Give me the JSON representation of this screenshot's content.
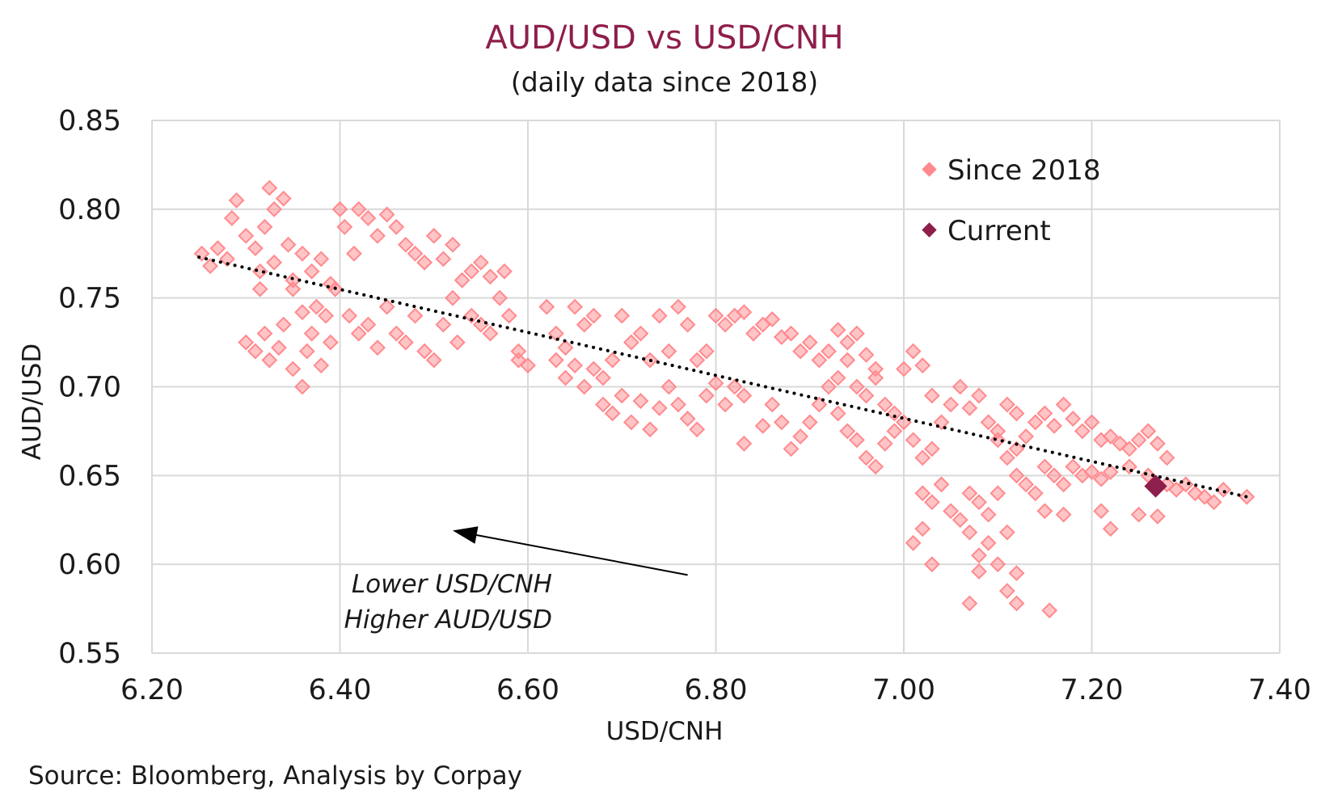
{
  "chart_data": {
    "type": "scatter",
    "title": "AUD/USD vs USD/CNH",
    "subtitle": "(daily data since 2018)",
    "xlabel": "USD/CNH",
    "ylabel": "AUD/USD",
    "xlim": [
      6.2,
      7.4
    ],
    "ylim": [
      0.55,
      0.85
    ],
    "x_ticks": [
      "6.20",
      "6.40",
      "6.60",
      "6.80",
      "7.00",
      "7.20",
      "7.40"
    ],
    "y_ticks": [
      "0.85",
      "0.80",
      "0.75",
      "0.70",
      "0.65",
      "0.60",
      "0.55"
    ],
    "grid": true,
    "legend_position": "top-right",
    "colors": {
      "since_2018": "#ff8a8e",
      "current": "#8e1e4c",
      "title": "#8e1e4c",
      "trendline": "#000000"
    },
    "series": [
      {
        "name": "Since 2018",
        "marker": "diamond",
        "points": [
          [
            6.253,
            0.775
          ],
          [
            6.262,
            0.768
          ],
          [
            6.27,
            0.778
          ],
          [
            6.28,
            0.772
          ],
          [
            6.285,
            0.795
          ],
          [
            6.29,
            0.805
          ],
          [
            6.3,
            0.785
          ],
          [
            6.31,
            0.778
          ],
          [
            6.315,
            0.765
          ],
          [
            6.32,
            0.79
          ],
          [
            6.325,
            0.812
          ],
          [
            6.33,
            0.8
          ],
          [
            6.34,
            0.806
          ],
          [
            6.345,
            0.78
          ],
          [
            6.33,
            0.77
          ],
          [
            6.315,
            0.755
          ],
          [
            6.35,
            0.76
          ],
          [
            6.36,
            0.775
          ],
          [
            6.37,
            0.765
          ],
          [
            6.38,
            0.772
          ],
          [
            6.39,
            0.758
          ],
          [
            6.4,
            0.8
          ],
          [
            6.405,
            0.79
          ],
          [
            6.415,
            0.775
          ],
          [
            6.42,
            0.8
          ],
          [
            6.43,
            0.795
          ],
          [
            6.44,
            0.785
          ],
          [
            6.45,
            0.797
          ],
          [
            6.46,
            0.79
          ],
          [
            6.47,
            0.78
          ],
          [
            6.48,
            0.775
          ],
          [
            6.49,
            0.77
          ],
          [
            6.5,
            0.785
          ],
          [
            6.51,
            0.772
          ],
          [
            6.52,
            0.78
          ],
          [
            6.53,
            0.76
          ],
          [
            6.54,
            0.765
          ],
          [
            6.55,
            0.77
          ],
          [
            6.56,
            0.762
          ],
          [
            6.57,
            0.75
          ],
          [
            6.575,
            0.765
          ],
          [
            6.3,
            0.725
          ],
          [
            6.31,
            0.72
          ],
          [
            6.32,
            0.73
          ],
          [
            6.325,
            0.715
          ],
          [
            6.335,
            0.722
          ],
          [
            6.34,
            0.735
          ],
          [
            6.35,
            0.71
          ],
          [
            6.36,
            0.7
          ],
          [
            6.365,
            0.72
          ],
          [
            6.37,
            0.73
          ],
          [
            6.375,
            0.745
          ],
          [
            6.38,
            0.712
          ],
          [
            6.385,
            0.74
          ],
          [
            6.39,
            0.725
          ],
          [
            6.395,
            0.755
          ],
          [
            6.36,
            0.742
          ],
          [
            6.35,
            0.755
          ],
          [
            6.41,
            0.74
          ],
          [
            6.42,
            0.73
          ],
          [
            6.43,
            0.735
          ],
          [
            6.44,
            0.722
          ],
          [
            6.45,
            0.745
          ],
          [
            6.46,
            0.73
          ],
          [
            6.47,
            0.725
          ],
          [
            6.48,
            0.74
          ],
          [
            6.49,
            0.72
          ],
          [
            6.5,
            0.715
          ],
          [
            6.51,
            0.735
          ],
          [
            6.52,
            0.75
          ],
          [
            6.525,
            0.725
          ],
          [
            6.54,
            0.74
          ],
          [
            6.55,
            0.735
          ],
          [
            6.56,
            0.73
          ],
          [
            6.58,
            0.74
          ],
          [
            6.59,
            0.72
          ],
          [
            6.6,
            0.712
          ],
          [
            6.59,
            0.715
          ],
          [
            6.62,
            0.745
          ],
          [
            6.63,
            0.73
          ],
          [
            6.64,
            0.722
          ],
          [
            6.65,
            0.745
          ],
          [
            6.66,
            0.735
          ],
          [
            6.67,
            0.74
          ],
          [
            6.63,
            0.715
          ],
          [
            6.64,
            0.705
          ],
          [
            6.65,
            0.712
          ],
          [
            6.66,
            0.7
          ],
          [
            6.67,
            0.71
          ],
          [
            6.68,
            0.705
          ],
          [
            6.69,
            0.715
          ],
          [
            6.7,
            0.74
          ],
          [
            6.71,
            0.725
          ],
          [
            6.72,
            0.73
          ],
          [
            6.73,
            0.715
          ],
          [
            6.74,
            0.74
          ],
          [
            6.75,
            0.72
          ],
          [
            6.76,
            0.745
          ],
          [
            6.77,
            0.735
          ],
          [
            6.68,
            0.69
          ],
          [
            6.69,
            0.685
          ],
          [
            6.7,
            0.695
          ],
          [
            6.71,
            0.68
          ],
          [
            6.72,
            0.692
          ],
          [
            6.73,
            0.676
          ],
          [
            6.74,
            0.688
          ],
          [
            6.75,
            0.7
          ],
          [
            6.76,
            0.69
          ],
          [
            6.77,
            0.682
          ],
          [
            6.78,
            0.676
          ],
          [
            6.79,
            0.695
          ],
          [
            6.8,
            0.702
          ],
          [
            6.81,
            0.69
          ],
          [
            6.82,
            0.7
          ],
          [
            6.83,
            0.695
          ],
          [
            6.78,
            0.715
          ],
          [
            6.79,
            0.72
          ],
          [
            6.8,
            0.74
          ],
          [
            6.81,
            0.735
          ],
          [
            6.82,
            0.74
          ],
          [
            6.83,
            0.742
          ],
          [
            6.84,
            0.73
          ],
          [
            6.85,
            0.735
          ],
          [
            6.86,
            0.738
          ],
          [
            6.87,
            0.728
          ],
          [
            6.88,
            0.73
          ],
          [
            6.89,
            0.72
          ],
          [
            6.9,
            0.725
          ],
          [
            6.91,
            0.715
          ],
          [
            6.92,
            0.72
          ],
          [
            6.93,
            0.732
          ],
          [
            6.94,
            0.725
          ],
          [
            6.95,
            0.73
          ],
          [
            6.96,
            0.718
          ],
          [
            6.97,
            0.71
          ],
          [
            6.83,
            0.668
          ],
          [
            6.85,
            0.678
          ],
          [
            6.86,
            0.69
          ],
          [
            6.87,
            0.68
          ],
          [
            6.88,
            0.665
          ],
          [
            6.89,
            0.672
          ],
          [
            6.9,
            0.68
          ],
          [
            6.91,
            0.69
          ],
          [
            6.92,
            0.7
          ],
          [
            6.93,
            0.685
          ],
          [
            6.94,
            0.675
          ],
          [
            6.95,
            0.67
          ],
          [
            6.96,
            0.66
          ],
          [
            6.97,
            0.655
          ],
          [
            6.98,
            0.668
          ],
          [
            6.99,
            0.675
          ],
          [
            7.0,
            0.68
          ],
          [
            7.01,
            0.67
          ],
          [
            7.02,
            0.66
          ],
          [
            7.03,
            0.665
          ],
          [
            6.93,
            0.705
          ],
          [
            6.94,
            0.715
          ],
          [
            6.95,
            0.7
          ],
          [
            6.96,
            0.695
          ],
          [
            6.97,
            0.705
          ],
          [
            6.98,
            0.69
          ],
          [
            6.99,
            0.685
          ],
          [
            7.0,
            0.71
          ],
          [
            7.01,
            0.72
          ],
          [
            7.02,
            0.712
          ],
          [
            7.03,
            0.695
          ],
          [
            7.04,
            0.68
          ],
          [
            7.05,
            0.69
          ],
          [
            7.06,
            0.7
          ],
          [
            7.07,
            0.688
          ],
          [
            7.08,
            0.695
          ],
          [
            7.09,
            0.68
          ],
          [
            7.1,
            0.675
          ],
          [
            7.11,
            0.69
          ],
          [
            7.12,
            0.685
          ],
          [
            7.1,
            0.67
          ],
          [
            7.11,
            0.66
          ],
          [
            7.12,
            0.665
          ],
          [
            7.13,
            0.672
          ],
          [
            7.14,
            0.68
          ],
          [
            7.15,
            0.685
          ],
          [
            7.16,
            0.678
          ],
          [
            7.17,
            0.69
          ],
          [
            7.18,
            0.682
          ],
          [
            7.19,
            0.675
          ],
          [
            7.2,
            0.68
          ],
          [
            7.21,
            0.67
          ],
          [
            7.22,
            0.672
          ],
          [
            7.23,
            0.668
          ],
          [
            7.24,
            0.665
          ],
          [
            7.25,
            0.67
          ],
          [
            7.26,
            0.675
          ],
          [
            7.27,
            0.668
          ],
          [
            7.28,
            0.66
          ],
          [
            7.12,
            0.65
          ],
          [
            7.13,
            0.645
          ],
          [
            7.14,
            0.64
          ],
          [
            7.15,
            0.655
          ],
          [
            7.16,
            0.65
          ],
          [
            7.17,
            0.645
          ],
          [
            7.18,
            0.655
          ],
          [
            7.19,
            0.65
          ],
          [
            7.2,
            0.652
          ],
          [
            7.21,
            0.648
          ],
          [
            7.22,
            0.652
          ],
          [
            7.24,
            0.655
          ],
          [
            7.26,
            0.65
          ],
          [
            7.28,
            0.645
          ],
          [
            7.29,
            0.642
          ],
          [
            7.3,
            0.645
          ],
          [
            7.31,
            0.64
          ],
          [
            7.32,
            0.638
          ],
          [
            7.33,
            0.635
          ],
          [
            7.34,
            0.642
          ],
          [
            7.365,
            0.638
          ],
          [
            7.02,
            0.64
          ],
          [
            7.03,
            0.635
          ],
          [
            7.04,
            0.645
          ],
          [
            7.05,
            0.63
          ],
          [
            7.06,
            0.625
          ],
          [
            7.07,
            0.64
          ],
          [
            7.08,
            0.635
          ],
          [
            7.09,
            0.628
          ],
          [
            7.1,
            0.64
          ],
          [
            7.15,
            0.63
          ],
          [
            7.17,
            0.628
          ],
          [
            7.21,
            0.63
          ],
          [
            7.22,
            0.62
          ],
          [
            7.25,
            0.628
          ],
          [
            7.27,
            0.627
          ],
          [
            7.01,
            0.612
          ],
          [
            7.02,
            0.62
          ],
          [
            7.03,
            0.6
          ],
          [
            7.07,
            0.618
          ],
          [
            7.08,
            0.605
          ],
          [
            7.09,
            0.612
          ],
          [
            7.1,
            0.6
          ],
          [
            7.11,
            0.618
          ],
          [
            7.12,
            0.595
          ],
          [
            7.08,
            0.596
          ],
          [
            7.11,
            0.585
          ],
          [
            7.12,
            0.578
          ],
          [
            7.07,
            0.578
          ],
          [
            7.155,
            0.574
          ]
        ]
      },
      {
        "name": "Current",
        "marker": "diamond",
        "points": [
          [
            7.268,
            0.644
          ]
        ]
      }
    ],
    "trendline": {
      "style": "dotted",
      "x": [
        6.25,
        7.365
      ],
      "y": [
        0.773,
        0.638
      ]
    },
    "annotation": {
      "lines": [
        "Lower USD/CNH",
        "Higher AUD/USD"
      ],
      "arrow_from": [
        6.77,
        0.594
      ],
      "arrow_to": [
        6.52,
        0.619
      ]
    },
    "source": "Source: Bloomberg, Analysis by Corpay"
  }
}
